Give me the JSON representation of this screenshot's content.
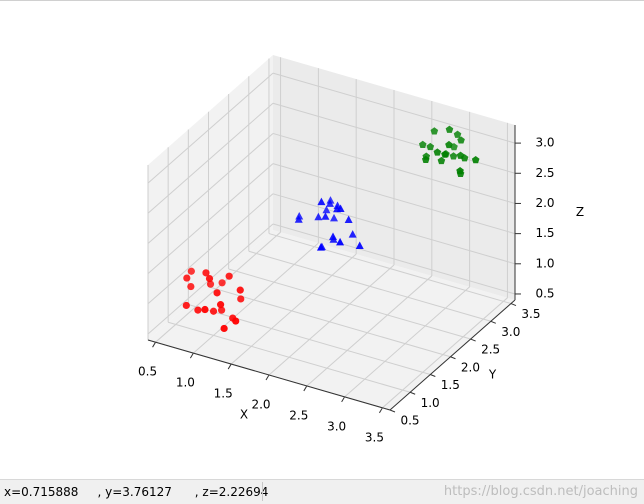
{
  "chart_data": {
    "type": "scatter3d",
    "xlabel": "X",
    "ylabel": "Y",
    "zlabel": "Z",
    "xlim": [
      0.4,
      3.6
    ],
    "ylim": [
      0.5,
      3.6
    ],
    "zlim": [
      0.4,
      3.3
    ],
    "xticks": [
      {
        "value": 0.5,
        "label": "0.5"
      },
      {
        "value": 1,
        "label": "1.0"
      },
      {
        "value": 1.5,
        "label": "1.5"
      },
      {
        "value": 2,
        "label": "2.0"
      },
      {
        "value": 2.5,
        "label": "2.5"
      },
      {
        "value": 3,
        "label": "3.0"
      },
      {
        "value": 3.5,
        "label": "3.5"
      }
    ],
    "yticks": [
      {
        "value": 0.5,
        "label": "0.5"
      },
      {
        "value": 1,
        "label": "1.0"
      },
      {
        "value": 1.5,
        "label": "1.5"
      },
      {
        "value": 2,
        "label": "2.0"
      },
      {
        "value": 2.5,
        "label": "2.5"
      },
      {
        "value": 3,
        "label": "3.0"
      },
      {
        "value": 3.5,
        "label": "3.5"
      }
    ],
    "zticks": [
      {
        "value": 0.5,
        "label": "0.5"
      },
      {
        "value": 1,
        "label": "1.0"
      },
      {
        "value": 1.5,
        "label": "1.5"
      },
      {
        "value": 2,
        "label": "2.0"
      },
      {
        "value": 2.5,
        "label": "2.5"
      },
      {
        "value": 3,
        "label": "3.0"
      }
    ],
    "grid": true,
    "series": [
      {
        "color": "#ff0000",
        "marker": "circle",
        "x": [
          0.7,
          0.9,
          1.1,
          1.3,
          0.8,
          1.0,
          1.2,
          0.6,
          1.4,
          0.9,
          1.1,
          1.0,
          0.7,
          1.3,
          1.2,
          0.8,
          1.0,
          1.1,
          0.9,
          1.2
        ],
        "y": [
          1.0,
          0.8,
          1.2,
          0.7,
          1.3,
          0.9,
          1.1,
          1.2,
          0.8,
          1.4,
          0.6,
          1.0,
          0.9,
          1.1,
          1.3,
          0.7,
          1.2,
          0.9,
          1.0,
          0.8
        ],
        "z": [
          1.1,
          0.9,
          1.3,
          0.8,
          1.0,
          1.4,
          0.7,
          1.2,
          0.9,
          1.0,
          1.1,
          0.8,
          1.3,
          1.2,
          0.9,
          1.0,
          0.7,
          1.2,
          1.4,
          1.1
        ]
      },
      {
        "color": "#0000ff",
        "marker": "triangle",
        "x": [
          1.8,
          2.0,
          2.2,
          1.7,
          2.1,
          1.9,
          2.3,
          2.0,
          1.8,
          2.2,
          1.6,
          2.1,
          1.9,
          2.4,
          2.0,
          1.8,
          2.2,
          2.1,
          1.9,
          2.0
        ],
        "y": [
          2.1,
          1.9,
          2.2,
          1.8,
          2.0,
          2.3,
          1.7,
          2.1,
          2.4,
          1.9,
          2.0,
          1.6,
          2.2,
          2.0,
          1.8,
          2.3,
          2.1,
          1.9,
          2.0,
          2.2
        ],
        "z": [
          2.0,
          2.2,
          1.8,
          2.1,
          2.3,
          1.9,
          2.0,
          1.7,
          2.1,
          2.4,
          2.0,
          1.9,
          2.2,
          1.8,
          2.5,
          2.0,
          2.1,
          1.9,
          1.6,
          2.2
        ]
      },
      {
        "color": "#008000",
        "marker": "pentagon",
        "x": [
          2.8,
          3.0,
          3.2,
          2.9,
          3.1,
          2.7,
          3.3,
          3.0,
          2.9,
          3.2,
          3.1,
          2.8,
          3.0,
          3.4,
          2.9,
          3.1,
          3.0,
          2.8,
          3.2,
          3.0
        ],
        "y": [
          3.0,
          2.8,
          3.1,
          3.2,
          2.9,
          3.0,
          2.8,
          3.3,
          2.7,
          3.0,
          3.2,
          3.1,
          2.9,
          3.0,
          3.4,
          2.8,
          3.1,
          2.9,
          3.0,
          3.2
        ],
        "z": [
          3.0,
          3.1,
          2.9,
          2.8,
          3.2,
          3.0,
          2.9,
          3.1,
          3.0,
          2.7,
          3.1,
          3.2,
          2.9,
          3.0,
          2.8,
          3.1,
          3.3,
          2.9,
          3.0,
          2.8
        ]
      }
    ]
  },
  "status_bar": {
    "coordinates": "x=0.715888     , y=3.76127      , z=2.22694",
    "watermark": "https://blog.csdn.net/joaching"
  }
}
